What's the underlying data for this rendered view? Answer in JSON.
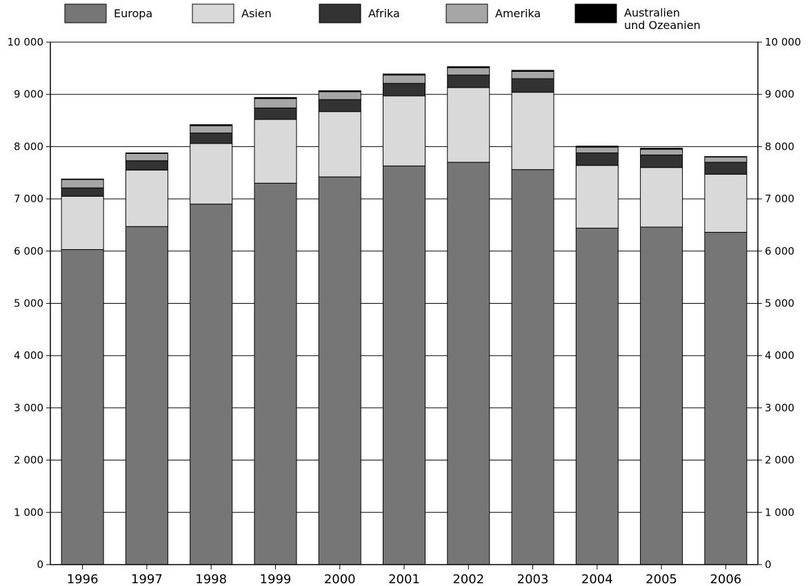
{
  "chart_data": {
    "type": "bar",
    "stacked": true,
    "title": "",
    "xlabel": "",
    "ylabel": "",
    "categories": [
      "1996",
      "1997",
      "1998",
      "1999",
      "2000",
      "2001",
      "2002",
      "2003",
      "2004",
      "2005",
      "2006"
    ],
    "ylim": [
      0,
      10000
    ],
    "yticks": [
      "0",
      "1 000",
      "2 000",
      "3 000",
      "4 000",
      "5 000",
      "6 000",
      "7 000",
      "8 000",
      "9 000",
      "10 000"
    ],
    "ytick_values": [
      0,
      1000,
      2000,
      3000,
      4000,
      5000,
      6000,
      7000,
      8000,
      9000,
      10000
    ],
    "grid": true,
    "dual_y_axis": true,
    "legend_position": "top",
    "series": [
      {
        "name": "Europa",
        "color": "#767676",
        "values": [
          6030,
          6470,
          6900,
          7300,
          7420,
          7630,
          7700,
          7560,
          6440,
          6460,
          6360
        ]
      },
      {
        "name": "Asien",
        "color": "#d9d9d9",
        "values": [
          1020,
          1080,
          1160,
          1220,
          1250,
          1340,
          1430,
          1480,
          1200,
          1140,
          1110
        ]
      },
      {
        "name": "Afrika",
        "color": "#333333",
        "values": [
          160,
          180,
          200,
          220,
          230,
          240,
          240,
          260,
          240,
          240,
          230
        ]
      },
      {
        "name": "Amerika",
        "color": "#a6a6a6",
        "values": [
          160,
          140,
          140,
          180,
          150,
          160,
          140,
          140,
          110,
          110,
          100
        ]
      },
      {
        "name": "Australien und Ozeanien",
        "name_lines": [
          "Australien",
          "und Ozeanien"
        ],
        "color": "#000000",
        "values": [
          10,
          10,
          20,
          20,
          20,
          20,
          20,
          20,
          20,
          20,
          10
        ]
      }
    ]
  }
}
